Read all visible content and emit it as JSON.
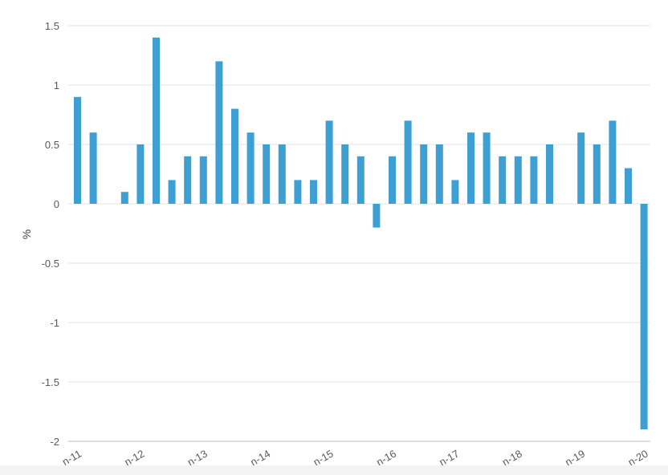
{
  "chart_data": {
    "type": "bar",
    "ylabel": "%",
    "ylim": [
      -2,
      1.5
    ],
    "yticks": [
      "1.5",
      "1",
      "0.5",
      "0",
      "-0.5",
      "-1",
      "-1.5",
      "-2"
    ],
    "ytick_values": [
      1.5,
      1,
      0.5,
      0,
      -0.5,
      -1,
      -1.5,
      -2
    ],
    "grid": true,
    "bar_color": "#3e9fd3",
    "x_tick_labels": [
      {
        "label": "n-11",
        "index": 0
      },
      {
        "label": "n-12",
        "index": 4
      },
      {
        "label": "n-13",
        "index": 8
      },
      {
        "label": "n-14",
        "index": 12
      },
      {
        "label": "n-15",
        "index": 16
      },
      {
        "label": "n-16",
        "index": 20
      },
      {
        "label": "n-17",
        "index": 24
      },
      {
        "label": "n-18",
        "index": 28
      },
      {
        "label": "n-19",
        "index": 32
      },
      {
        "label": "n-20",
        "index": 36
      }
    ],
    "values": [
      0.9,
      0.6,
      0,
      0.1,
      0.5,
      1.4,
      0.2,
      0.4,
      0.4,
      1.2,
      0.8,
      0.6,
      0.5,
      0.5,
      0.2,
      0.2,
      0.7,
      0.5,
      0.4,
      -0.2,
      0.4,
      0.7,
      0.5,
      0.5,
      0.2,
      0.6,
      0.6,
      0.4,
      0.4,
      0.4,
      0.5,
      0,
      0.6,
      0.5,
      0.7,
      0.3,
      -1.9
    ]
  }
}
